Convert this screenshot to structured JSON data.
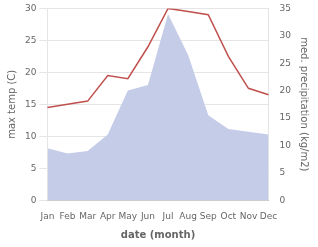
{
  "chart_data": {
    "type": "line",
    "categories": [
      "Jan",
      "Feb",
      "Mar",
      "Apr",
      "May",
      "Jun",
      "Jul",
      "Aug",
      "Sep",
      "Oct",
      "Nov",
      "Dec"
    ],
    "series": [
      {
        "type": "area",
        "axis": "y2",
        "color": "#c5cce8",
        "values": [
          9.5,
          8.5,
          9.0,
          12.0,
          20.0,
          21.0,
          34.0,
          26.5,
          15.5,
          13.0,
          12.5,
          12.0
        ]
      },
      {
        "type": "line",
        "axis": "y",
        "color": "#c0504d",
        "values": [
          14.5,
          15.0,
          15.5,
          19.5,
          19.0,
          24.0,
          30.0,
          29.5,
          29.0,
          22.5,
          17.5,
          16.5
        ]
      }
    ],
    "xlabel": "date (month)",
    "ylabel": "max temp (C)",
    "y2label": "med. precipitation (kg/m2)",
    "ylim": [
      0,
      30
    ],
    "yticks": [
      0,
      5,
      10,
      15,
      20,
      25,
      30
    ],
    "y2lim": [
      0,
      35
    ],
    "y2ticks": [
      0,
      5,
      10,
      15,
      20,
      25,
      30,
      35
    ],
    "grid": true
  }
}
